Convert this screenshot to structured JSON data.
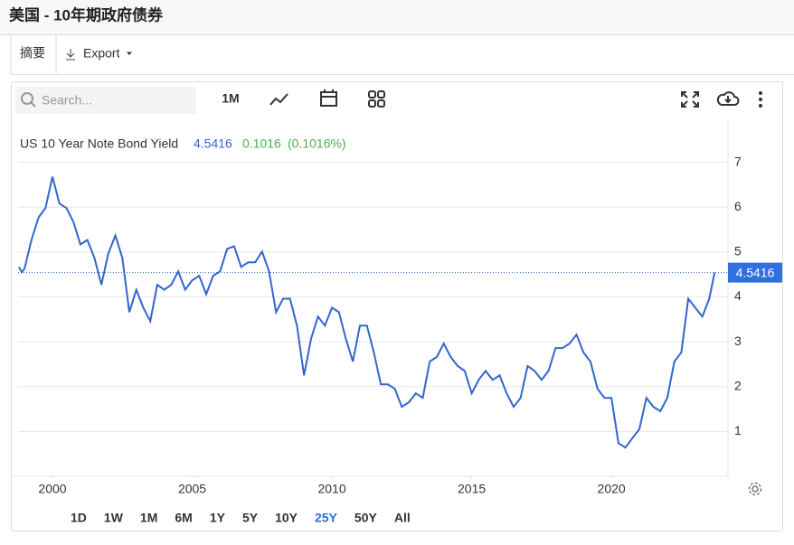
{
  "header": {
    "title": "美国 - 10年期政府债券"
  },
  "tabs": [
    "摘要",
    "Export"
  ],
  "toolbar": {
    "search_placeholder": "Search...",
    "interval": "1M"
  },
  "chart_data": {
    "type": "line",
    "change": 0.1016,
    "change_label": "(0.1016%)",
    "x": [
      1998.8,
      1998.9,
      1999.0,
      1999.25,
      1999.5,
      1999.75,
      2000.0,
      2000.25,
      2000.5,
      2000.75,
      2001.0,
      2001.25,
      2001.5,
      2001.75,
      2002.0,
      2002.25,
      2002.5,
      2002.75,
      2003.0,
      2003.25,
      2003.5,
      2003.75,
      2004.0,
      2004.25,
      2004.5,
      2004.75,
      2005.0,
      2005.25,
      2005.5,
      2005.75,
      2006.0,
      2006.25,
      2006.5,
      2006.75,
      2007.0,
      2007.25,
      2007.5,
      2007.75,
      2008.0,
      2008.25,
      2008.5,
      2008.75,
      2009.0,
      2009.25,
      2009.5,
      2009.75,
      2010.0,
      2010.25,
      2010.5,
      2010.75,
      2011.0,
      2011.25,
      2011.5,
      2011.75,
      2012.0,
      2012.25,
      2012.5,
      2012.75,
      2013.0,
      2013.25,
      2013.5,
      2013.75,
      2014.0,
      2014.25,
      2014.5,
      2014.75,
      2015.0,
      2015.25,
      2015.5,
      2015.75,
      2016.0,
      2016.25,
      2016.5,
      2016.75,
      2017.0,
      2017.25,
      2017.5,
      2017.75,
      2018.0,
      2018.25,
      2018.5,
      2018.75,
      2019.0,
      2019.25,
      2019.5,
      2019.75,
      2020.0,
      2020.25,
      2020.5,
      2020.75,
      2021.0,
      2021.25,
      2021.5,
      2021.75,
      2022.0,
      2022.25,
      2022.5,
      2022.75,
      2023.0,
      2023.25,
      2023.5,
      2023.69
    ],
    "series": [
      {
        "name": "US 10 Year Note Bond Yield",
        "color": "#3366cc",
        "values": [
          4.67,
          4.55,
          4.63,
          5.27,
          5.77,
          5.98,
          6.68,
          6.08,
          5.98,
          5.67,
          5.17,
          5.27,
          4.87,
          4.27,
          4.97,
          5.37,
          4.87,
          3.66,
          4.16,
          3.76,
          3.46,
          4.27,
          4.16,
          4.27,
          4.57,
          4.16,
          4.37,
          4.47,
          4.06,
          4.47,
          4.57,
          5.07,
          5.13,
          4.67,
          4.77,
          4.77,
          5.01,
          4.57,
          3.66,
          3.96,
          3.96,
          3.36,
          2.25,
          3.06,
          3.56,
          3.36,
          3.76,
          3.66,
          3.06,
          2.56,
          3.36,
          3.36,
          2.76,
          2.05,
          2.05,
          1.95,
          1.55,
          1.65,
          1.85,
          1.75,
          2.56,
          2.66,
          2.96,
          2.66,
          2.46,
          2.35,
          1.85,
          2.15,
          2.35,
          2.15,
          2.25,
          1.85,
          1.55,
          1.75,
          2.46,
          2.35,
          2.15,
          2.35,
          2.86,
          2.86,
          2.96,
          3.16,
          2.76,
          2.56,
          1.95,
          1.75,
          1.75,
          0.74,
          0.64,
          0.85,
          1.05,
          1.75,
          1.55,
          1.45,
          1.75,
          2.56,
          2.76,
          3.96,
          3.76,
          3.56,
          3.96,
          4.5416
        ]
      }
    ],
    "xlim": [
      1998.77,
      2024.17
    ],
    "ylim": [
      0,
      8
    ],
    "xticks": [
      2000,
      2005,
      2010,
      2015,
      2020
    ],
    "yticks": [
      1,
      2,
      3,
      4,
      5,
      6,
      7
    ],
    "grid": true
  },
  "ranges": {
    "options": [
      "1D",
      "1W",
      "1M",
      "6M",
      "1Y",
      "5Y",
      "10Y",
      "25Y",
      "50Y",
      "All"
    ],
    "active": "25Y"
  }
}
